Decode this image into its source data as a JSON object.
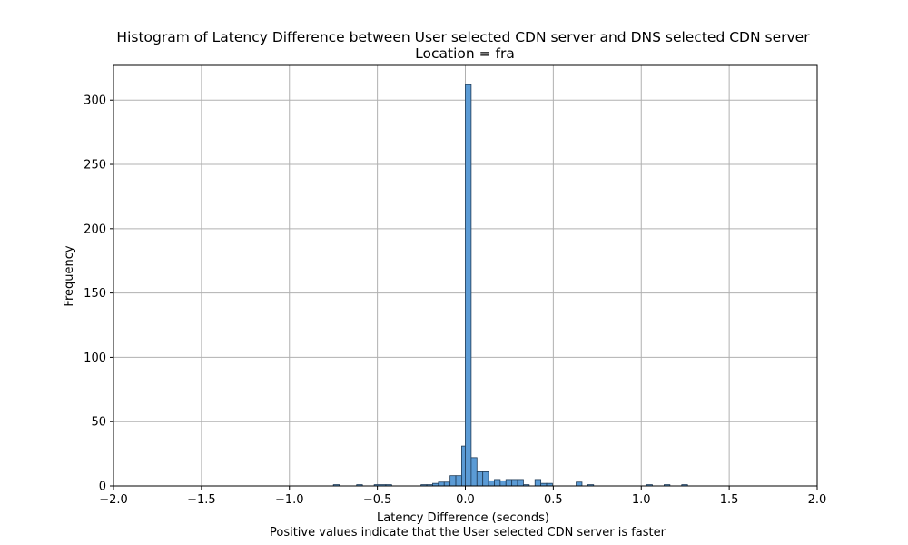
{
  "chart_data": {
    "type": "bar",
    "title": "Histogram of Latency Difference between User selected CDN server and DNS selected CDN server",
    "subtitle": "Location = fra",
    "xlabel": "Latency Difference (seconds)",
    "xlabel_note": "Positive values indicate that the User selected CDN server is faster",
    "ylabel": "Frequency",
    "xlim": [
      -2.0,
      2.0
    ],
    "ylim": [
      0,
      327
    ],
    "x_ticks": [
      "−2.0",
      "−1.5",
      "−1.0",
      "−0.5",
      "0.0",
      "0.5",
      "1.0",
      "1.5",
      "2.0"
    ],
    "x_tick_values": [
      -2.0,
      -1.5,
      -1.0,
      -0.5,
      0.0,
      0.5,
      1.0,
      1.5,
      2.0
    ],
    "y_ticks": [
      "0",
      "50",
      "100",
      "150",
      "200",
      "250",
      "300"
    ],
    "y_tick_values": [
      0,
      50,
      100,
      150,
      200,
      250,
      300
    ],
    "grid": true,
    "bar_color": "#5b9bd5",
    "edge_color": "#1f3b57",
    "bins": [
      {
        "start": -0.75,
        "end": -0.717,
        "count": 1
      },
      {
        "start": -0.618,
        "end": -0.585,
        "count": 1
      },
      {
        "start": -0.518,
        "end": -0.485,
        "count": 1
      },
      {
        "start": -0.485,
        "end": -0.452,
        "count": 1
      },
      {
        "start": -0.452,
        "end": -0.419,
        "count": 1
      },
      {
        "start": -0.252,
        "end": -0.219,
        "count": 1
      },
      {
        "start": -0.219,
        "end": -0.186,
        "count": 1
      },
      {
        "start": -0.186,
        "end": -0.153,
        "count": 2
      },
      {
        "start": -0.153,
        "end": -0.12,
        "count": 3
      },
      {
        "start": -0.12,
        "end": -0.087,
        "count": 3
      },
      {
        "start": -0.087,
        "end": -0.054,
        "count": 8
      },
      {
        "start": -0.054,
        "end": -0.021,
        "count": 8
      },
      {
        "start": -0.021,
        "end": 0.0,
        "count": 31
      },
      {
        "start": 0.0,
        "end": 0.033,
        "count": 312
      },
      {
        "start": 0.033,
        "end": 0.066,
        "count": 22
      },
      {
        "start": 0.066,
        "end": 0.099,
        "count": 11
      },
      {
        "start": 0.099,
        "end": 0.132,
        "count": 11
      },
      {
        "start": 0.132,
        "end": 0.165,
        "count": 4
      },
      {
        "start": 0.165,
        "end": 0.198,
        "count": 5
      },
      {
        "start": 0.198,
        "end": 0.231,
        "count": 4
      },
      {
        "start": 0.231,
        "end": 0.264,
        "count": 5
      },
      {
        "start": 0.264,
        "end": 0.297,
        "count": 5
      },
      {
        "start": 0.297,
        "end": 0.33,
        "count": 5
      },
      {
        "start": 0.33,
        "end": 0.363,
        "count": 1
      },
      {
        "start": 0.396,
        "end": 0.429,
        "count": 5
      },
      {
        "start": 0.429,
        "end": 0.462,
        "count": 2
      },
      {
        "start": 0.462,
        "end": 0.495,
        "count": 2
      },
      {
        "start": 0.63,
        "end": 0.663,
        "count": 3
      },
      {
        "start": 0.696,
        "end": 0.729,
        "count": 1
      },
      {
        "start": 1.03,
        "end": 1.063,
        "count": 1
      },
      {
        "start": 1.13,
        "end": 1.163,
        "count": 1
      },
      {
        "start": 1.23,
        "end": 1.263,
        "count": 1
      }
    ]
  }
}
